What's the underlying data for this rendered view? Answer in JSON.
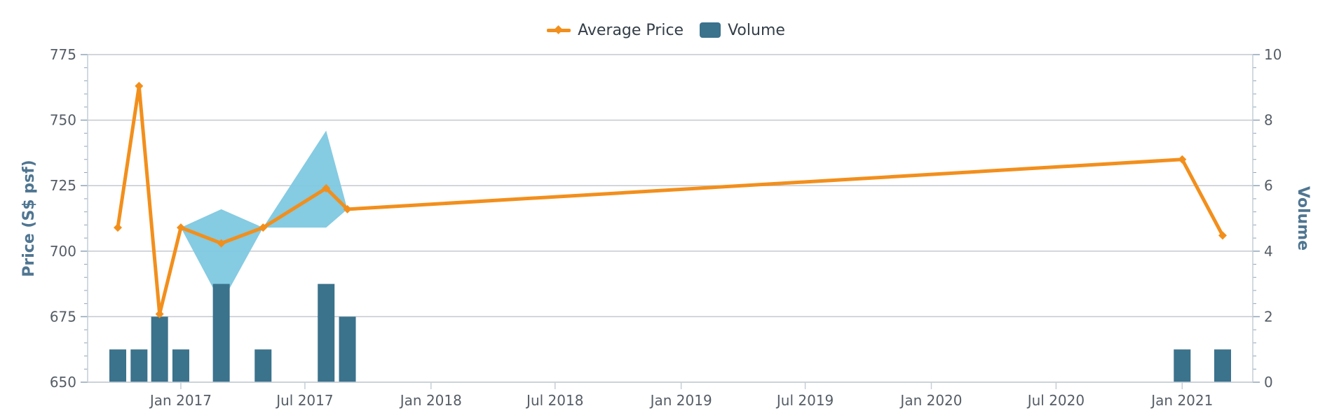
{
  "legend": {
    "price_label": "Average Price",
    "volume_label": "Volume"
  },
  "colors": {
    "price_line": "#f28f1c",
    "volume_bar": "#3b728c",
    "range_band": "#7ec8e0",
    "grid": "#c4c9ce",
    "axis_title": "#4f7591"
  },
  "chart_data": {
    "type": "line+bar",
    "y_left_label": "Price (S$ psf)",
    "y_right_label": "Volume",
    "y_left_range": [
      650,
      775
    ],
    "y_left_ticks": [
      650,
      675,
      700,
      725,
      750,
      775
    ],
    "y_right_range": [
      0,
      10
    ],
    "y_right_ticks": [
      0,
      2,
      4,
      6,
      8,
      10
    ],
    "x_range": [
      "2016-08-18",
      "2021-04-14"
    ],
    "x_ticks": [
      {
        "date": "2017-01-01",
        "label": "Jan 2017"
      },
      {
        "date": "2017-07-01",
        "label": "Jul 2017"
      },
      {
        "date": "2018-01-01",
        "label": "Jan 2018"
      },
      {
        "date": "2018-07-01",
        "label": "Jul 2018"
      },
      {
        "date": "2019-01-01",
        "label": "Jan 2019"
      },
      {
        "date": "2019-07-01",
        "label": "Jul 2019"
      },
      {
        "date": "2020-01-01",
        "label": "Jan 2020"
      },
      {
        "date": "2020-07-01",
        "label": "Jul 2020"
      },
      {
        "date": "2021-01-01",
        "label": "Jan 2021"
      }
    ],
    "legend_position": "top-center",
    "grid": true,
    "series": [
      {
        "name": "Average Price",
        "type": "line",
        "axis": "left",
        "points": [
          {
            "x": "2016-10-01",
            "y": 709
          },
          {
            "x": "2016-11-01",
            "y": 763
          },
          {
            "x": "2016-12-01",
            "y": 676
          },
          {
            "x": "2017-01-01",
            "y": 709
          },
          {
            "x": "2017-03-01",
            "y": 703
          },
          {
            "x": "2017-05-01",
            "y": 709
          },
          {
            "x": "2017-08-01",
            "y": 724
          },
          {
            "x": "2017-09-01",
            "y": 716
          },
          {
            "x": "2021-01-01",
            "y": 735
          },
          {
            "x": "2021-03-01",
            "y": 706
          }
        ]
      },
      {
        "name": "Volume",
        "type": "bar",
        "axis": "right",
        "points": [
          {
            "x": "2016-10-01",
            "y": 1
          },
          {
            "x": "2016-11-01",
            "y": 1
          },
          {
            "x": "2016-12-01",
            "y": 2
          },
          {
            "x": "2017-01-01",
            "y": 1
          },
          {
            "x": "2017-03-01",
            "y": 3
          },
          {
            "x": "2017-05-01",
            "y": 1
          },
          {
            "x": "2017-08-01",
            "y": 3
          },
          {
            "x": "2017-09-01",
            "y": 2
          },
          {
            "x": "2021-01-01",
            "y": 1
          },
          {
            "x": "2021-03-01",
            "y": 1
          }
        ]
      },
      {
        "type": "range",
        "axis": "left",
        "points": [
          {
            "x": "2017-01-01",
            "low": 709,
            "high": 709
          },
          {
            "x": "2017-03-01",
            "low": 680,
            "high": 716
          },
          {
            "x": "2017-05-01",
            "low": 709,
            "high": 709
          },
          {
            "x": "2017-08-01",
            "low": 709,
            "high": 746
          },
          {
            "x": "2017-09-01",
            "low": 716,
            "high": 716
          }
        ]
      }
    ]
  }
}
